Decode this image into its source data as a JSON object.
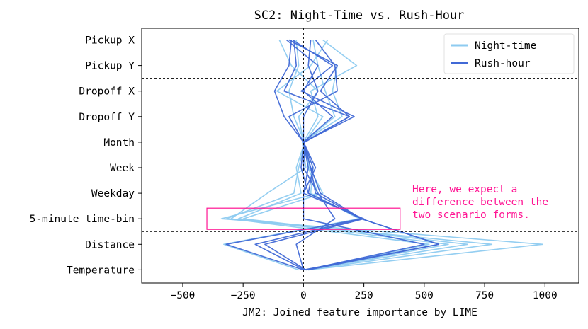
{
  "chart_data": {
    "type": "line",
    "title": "SC2: Night-Time vs. Rush-Hour",
    "xlabel": "JM2: Joined feature importance by LIME",
    "ylabel": "",
    "xlim": [
      -670,
      1140
    ],
    "xticks": [
      -500,
      -250,
      0,
      250,
      500,
      750,
      1000
    ],
    "xtick_labels": [
      "−500",
      "−250",
      "0",
      "250",
      "500",
      "750",
      "1000"
    ],
    "categories": [
      "Pickup X",
      "Pickup Y",
      "Dropoff X",
      "Dropoff Y",
      "Month",
      "Week",
      "Weekday",
      "5-minute time-bin",
      "Distance",
      "Temperature"
    ],
    "legend": {
      "placement": "top-right",
      "entries": [
        {
          "name": "Night-time",
          "color": "#8ecbf0"
        },
        {
          "name": "Rush-hour",
          "color": "#4169d6"
        }
      ]
    },
    "annotation": {
      "lines": [
        "Here, we expect a",
        "difference between the",
        "two scenario forms."
      ],
      "color": "#ff1493"
    },
    "highlight_box": {
      "category": "5-minute time-bin",
      "x_range": [
        -400,
        400
      ],
      "color": "#ff1493"
    },
    "reference_lines": {
      "vertical_x": 0,
      "horizontal_between": [
        [
          "Pickup Y",
          "Dropoff X"
        ],
        [
          "5-minute time-bin",
          "Distance"
        ]
      ]
    },
    "series": [
      {
        "group": "Night-time",
        "values": [
          40,
          60,
          90,
          130,
          0,
          20,
          60,
          -340,
          990,
          20
        ]
      },
      {
        "group": "Night-time",
        "values": [
          -30,
          -20,
          -60,
          -40,
          5,
          -20,
          -40,
          -320,
          780,
          10
        ]
      },
      {
        "group": "Night-time",
        "values": [
          80,
          220,
          30,
          60,
          0,
          25,
          80,
          -250,
          680,
          0
        ]
      },
      {
        "group": "Night-time",
        "values": [
          -60,
          140,
          120,
          160,
          -5,
          10,
          -150,
          -300,
          520,
          5
        ]
      },
      {
        "group": "Night-time",
        "values": [
          100,
          30,
          -110,
          80,
          5,
          -30,
          -10,
          -270,
          600,
          15
        ]
      },
      {
        "group": "Night-time",
        "values": [
          -100,
          -50,
          60,
          -20,
          0,
          40,
          30,
          230,
          -330,
          -20
        ]
      },
      {
        "group": "Rush-hour",
        "values": [
          -60,
          140,
          70,
          190,
          0,
          30,
          70,
          240,
          -320,
          0
        ]
      },
      {
        "group": "Rush-hour",
        "values": [
          -50,
          -60,
          -120,
          -80,
          0,
          40,
          20,
          240,
          -200,
          5
        ]
      },
      {
        "group": "Rush-hour",
        "values": [
          -45,
          120,
          -10,
          210,
          0,
          50,
          0,
          250,
          -160,
          10
        ]
      },
      {
        "group": "Rush-hour",
        "values": [
          30,
          20,
          60,
          0,
          0,
          -10,
          20,
          240,
          560,
          20
        ]
      },
      {
        "group": "Rush-hour",
        "values": [
          -40,
          -30,
          -80,
          190,
          5,
          0,
          60,
          130,
          -30,
          0
        ]
      },
      {
        "group": "Rush-hour",
        "values": [
          50,
          130,
          140,
          -60,
          0,
          20,
          0,
          0,
          500,
          10
        ]
      },
      {
        "group": "Rush-hour",
        "values": [
          -70,
          60,
          0,
          120,
          0,
          30,
          50,
          240,
          560,
          0
        ]
      }
    ]
  }
}
